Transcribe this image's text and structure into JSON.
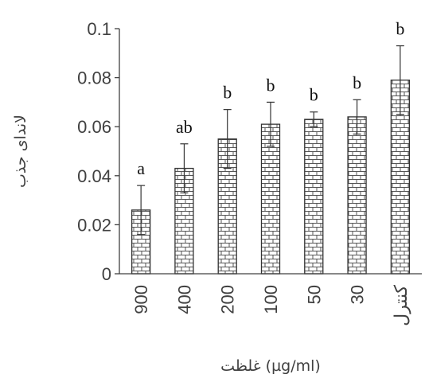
{
  "chart_data": {
    "type": "bar",
    "categories": [
      "900",
      "400",
      "200",
      "100",
      "50",
      "30",
      "کنترل"
    ],
    "values": [
      0.026,
      0.043,
      0.055,
      0.061,
      0.063,
      0.064,
      0.079
    ],
    "errors": [
      0.01,
      0.01,
      0.012,
      0.009,
      0.003,
      0.007,
      0.014
    ],
    "significance_labels": [
      "a",
      "ab",
      "b",
      "b",
      "b",
      "b",
      "b"
    ],
    "yticks": [
      "0",
      "0.02",
      "0.04",
      "0.06",
      "0.08",
      "0.1"
    ],
    "ylim": [
      0,
      0.1
    ],
    "xlabel": "غلظت (µg/ml)",
    "ylabel": "لاندای جذب",
    "title": "",
    "grid": false,
    "bar_pattern": "brick",
    "colors": {
      "bar_fill": "#ffffff",
      "bar_pattern_stroke": "#555555",
      "bar_border": "#333333",
      "axis": "#404040"
    }
  }
}
